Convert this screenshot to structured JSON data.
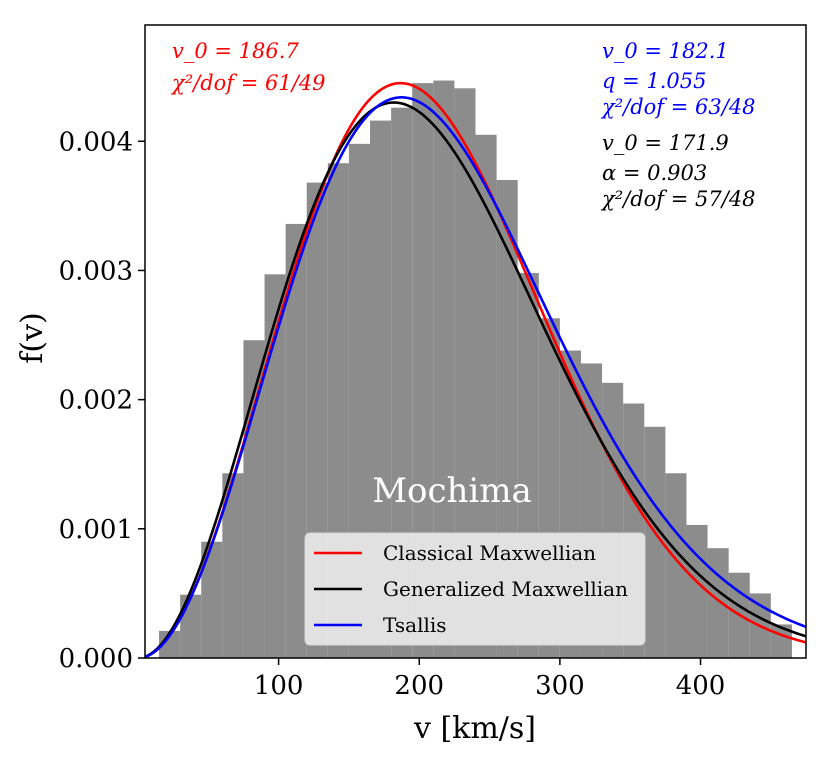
{
  "chart_data": {
    "type": "histogram+line",
    "xlabel": "v [km/s]",
    "ylabel": "f(v)",
    "xlim": [
      5,
      475
    ],
    "ylim": [
      0,
      0.0049
    ],
    "x_ticks": [
      100,
      200,
      300,
      400
    ],
    "x_tick_labels": [
      "100",
      "200",
      "300",
      "400"
    ],
    "y_ticks": [
      0.0,
      0.001,
      0.002,
      0.003,
      0.004
    ],
    "y_tick_labels": [
      "0.000",
      "0.001",
      "0.002",
      "0.003",
      "0.004"
    ],
    "panel_label": "Mochima",
    "histogram": {
      "color": "#8c8c8c",
      "bin_edges": [
        15,
        30,
        45,
        60,
        75,
        90,
        105,
        120,
        135,
        150,
        165,
        180,
        195,
        210,
        225,
        240,
        255,
        270,
        285,
        300,
        315,
        330,
        345,
        360,
        375,
        390,
        405,
        420,
        435,
        450,
        465
      ],
      "values": [
        0.00021,
        0.00049,
        0.0009,
        0.00143,
        0.00246,
        0.00297,
        0.00336,
        0.00368,
        0.00383,
        0.00398,
        0.00416,
        0.00426,
        0.00445,
        0.00447,
        0.00441,
        0.00405,
        0.0037,
        0.00298,
        0.00263,
        0.00238,
        0.00228,
        0.00213,
        0.00197,
        0.00179,
        0.00143,
        0.00103,
        0.00085,
        0.00066,
        0.0005,
        0.00026
      ]
    },
    "series": [
      {
        "name": "Classical Maxwellian",
        "color": "#ff0000",
        "model": "maxwellian",
        "v0": 186.7,
        "peak": 0.00445
      },
      {
        "name": "Generalized Maxwellian",
        "color": "#000000",
        "model": "generalized",
        "v0": 171.9,
        "alpha": 0.903,
        "peak": 0.0043
      },
      {
        "name": "Tsallis",
        "color": "#0000ff",
        "model": "tsallis",
        "v0": 182.1,
        "q": 1.055,
        "peak": 0.00434
      }
    ],
    "annotations": {
      "red": [
        "v_0 = 186.7",
        "χ²/dof = 61/49"
      ],
      "blue": [
        "v_0 = 182.1",
        "q = 1.055",
        "χ²/dof = 63/48"
      ],
      "black": [
        "v_0 = 171.9",
        "α = 0.903",
        "χ²/dof = 57/48"
      ]
    },
    "legend": {
      "location": "lower-right",
      "entries": [
        "Classical Maxwellian",
        "Generalized Maxwellian",
        "Tsallis"
      ]
    }
  }
}
